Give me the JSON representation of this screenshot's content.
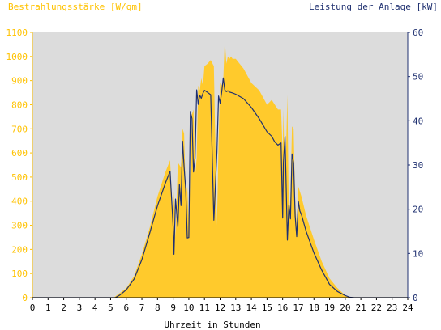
{
  "header": {
    "left_axis_title": "Bestrahlungsstärke [W/qm]",
    "right_axis_title": "Leistung der Anlage [kW]"
  },
  "chart_data": {
    "type": "area",
    "xlabel": "Uhrzeit in Stunden",
    "ylabel": "Bestrahlungsstärke [W/qm]",
    "y2label": "Leistung der Anlage [kW]",
    "xlim": [
      0,
      24
    ],
    "ylim": [
      0,
      1100
    ],
    "y2lim": [
      0,
      60
    ],
    "x_ticks": [
      "0",
      "1",
      "2",
      "3",
      "4",
      "5",
      "6",
      "7",
      "8",
      "9",
      "10",
      "11",
      "12",
      "13",
      "14",
      "15",
      "16",
      "17",
      "18",
      "19",
      "20",
      "21",
      "22",
      "23",
      "24"
    ],
    "y_ticks": [
      "0",
      "100",
      "200",
      "300",
      "400",
      "500",
      "600",
      "700",
      "800",
      "900",
      "1000",
      "1100"
    ],
    "y2_ticks": [
      "0",
      "10",
      "20",
      "30",
      "40",
      "50",
      "60"
    ],
    "grid": false,
    "colors": {
      "plot_bg": "#dcdcdc",
      "irradiance": "#ffca2c",
      "power": "#1f3070",
      "left_axis": "#ffc200",
      "right_axis": "#1f3070"
    },
    "series": [
      {
        "name": "Bestrahlungsstärke [W/qm]",
        "axis": "left",
        "style": "area",
        "x": [
          0,
          5.2,
          5.5,
          6.0,
          6.5,
          7.0,
          7.5,
          8.0,
          8.5,
          8.8,
          9.0,
          9.05,
          9.15,
          9.3,
          9.5,
          9.6,
          9.7,
          9.8,
          9.9,
          10.0,
          10.1,
          10.2,
          10.3,
          10.4,
          10.5,
          10.6,
          10.7,
          10.8,
          10.9,
          11.0,
          11.2,
          11.4,
          11.6,
          11.8,
          11.9,
          12.0,
          12.1,
          12.2,
          12.3,
          12.4,
          12.5,
          12.6,
          12.7,
          12.8,
          13.0,
          13.5,
          14.0,
          14.5,
          15.0,
          15.3,
          15.5,
          15.7,
          15.9,
          16.0,
          16.05,
          16.15,
          16.3,
          16.4,
          16.5,
          16.6,
          16.7,
          16.8,
          16.9,
          17.0,
          17.1,
          17.2,
          17.5,
          18.0,
          18.5,
          19.0,
          19.5,
          20.0,
          20.3,
          20.5,
          24
        ],
        "values": [
          0,
          0,
          15,
          40,
          90,
          180,
          290,
          420,
          520,
          570,
          300,
          440,
          250,
          560,
          540,
          700,
          680,
          420,
          460,
          300,
          520,
          760,
          780,
          500,
          580,
          880,
          860,
          910,
          880,
          960,
          970,
          985,
          960,
          300,
          640,
          890,
          880,
          900,
          1070,
          970,
          1000,
          990,
          1000,
          990,
          990,
          950,
          890,
          860,
          800,
          820,
          800,
          780,
          780,
          600,
          780,
          420,
          840,
          320,
          420,
          710,
          700,
          400,
          300,
          460,
          440,
          420,
          340,
          240,
          150,
          80,
          40,
          10,
          3,
          0,
          0
        ]
      },
      {
        "name": "Leistung der Anlage [kW]",
        "axis": "right",
        "style": "line",
        "x": [
          0,
          5.3,
          5.6,
          6.0,
          6.5,
          7.0,
          7.5,
          8.0,
          8.5,
          8.8,
          9.0,
          9.05,
          9.15,
          9.3,
          9.4,
          9.5,
          9.6,
          9.7,
          9.8,
          9.9,
          10.0,
          10.1,
          10.2,
          10.3,
          10.4,
          10.5,
          10.6,
          10.7,
          10.8,
          10.9,
          11.0,
          11.2,
          11.4,
          11.6,
          11.8,
          11.9,
          12.0,
          12.1,
          12.2,
          12.3,
          12.4,
          12.5,
          12.6,
          12.8,
          13.0,
          13.5,
          14.0,
          14.5,
          15.0,
          15.3,
          15.5,
          15.7,
          15.9,
          16.0,
          16.05,
          16.15,
          16.3,
          16.4,
          16.5,
          16.6,
          16.7,
          16.8,
          16.9,
          17.0,
          17.1,
          17.2,
          17.5,
          18.0,
          18.5,
          19.0,
          19.5,
          20.0,
          20.3,
          20.6,
          24
        ],
        "values": [
          0,
          0,
          0.6,
          1.8,
          4.2,
          8.6,
          14.6,
          20.8,
          25.9,
          28.6,
          16.0,
          9.8,
          22.3,
          16.0,
          25.6,
          20.8,
          35.4,
          29.5,
          24.5,
          13.5,
          13.6,
          42.1,
          40.5,
          28.4,
          31.6,
          47.0,
          43.7,
          45.8,
          45.1,
          46.2,
          46.9,
          46.4,
          45.9,
          17.5,
          33.0,
          45.6,
          44.0,
          46.4,
          49.7,
          47.0,
          46.6,
          46.8,
          46.5,
          46.3,
          46.0,
          45.0,
          43.0,
          40.5,
          37.5,
          36.5,
          35.2,
          34.5,
          35.0,
          18.0,
          30.5,
          36.5,
          13.0,
          21.0,
          17.8,
          32.5,
          30.5,
          18.5,
          13.8,
          21.8,
          19.6,
          18.8,
          15.0,
          10.1,
          6.2,
          3.0,
          1.4,
          0.5,
          0.1,
          0,
          0
        ]
      }
    ]
  }
}
